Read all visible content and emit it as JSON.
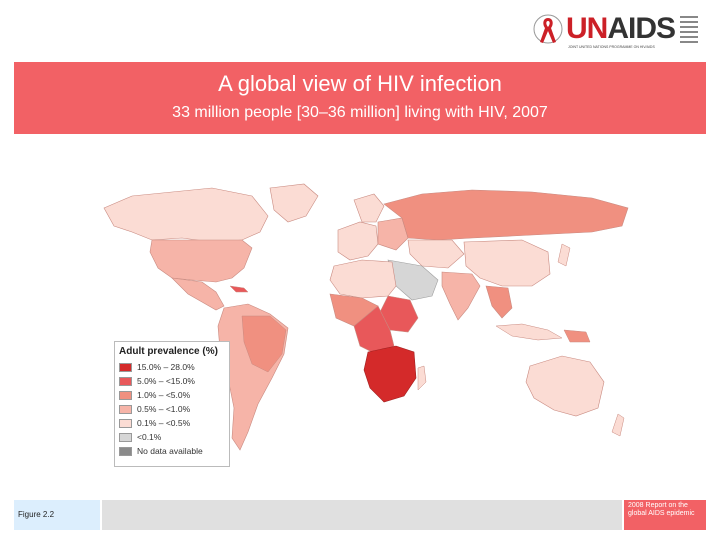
{
  "banner": {
    "title": "A global view of HIV infection",
    "subtitle": "33 million people [30–36 million] living with HIV, 2007"
  },
  "logo": {
    "text_un": "UN",
    "text_aids": "AIDS",
    "tagline": "JOINT UNITED NATIONS PROGRAMME ON HIV/AIDS"
  },
  "legend": {
    "title": "Adult prevalence (%)",
    "items": [
      {
        "label": "15.0% – 28.0%",
        "color": "#d42a2a"
      },
      {
        "label": "5.0% – <15.0%",
        "color": "#e8585a"
      },
      {
        "label": "1.0% – <5.0%",
        "color": "#f09080"
      },
      {
        "label": "0.5% – <1.0%",
        "color": "#f6b4a8"
      },
      {
        "label": "0.1% – <0.5%",
        "color": "#fbdcd4"
      },
      {
        "label": "<0.1%",
        "color": "#d6d6d6"
      },
      {
        "label": "No data available",
        "color": "#8a8a8a"
      }
    ]
  },
  "footer": {
    "figure": "Figure 2.2",
    "report": "2008 Report on the global AIDS epidemic"
  },
  "colors": {
    "banner": "#f26165",
    "figure_box": "#dceefd",
    "footer_gray": "#e0e0e0"
  }
}
